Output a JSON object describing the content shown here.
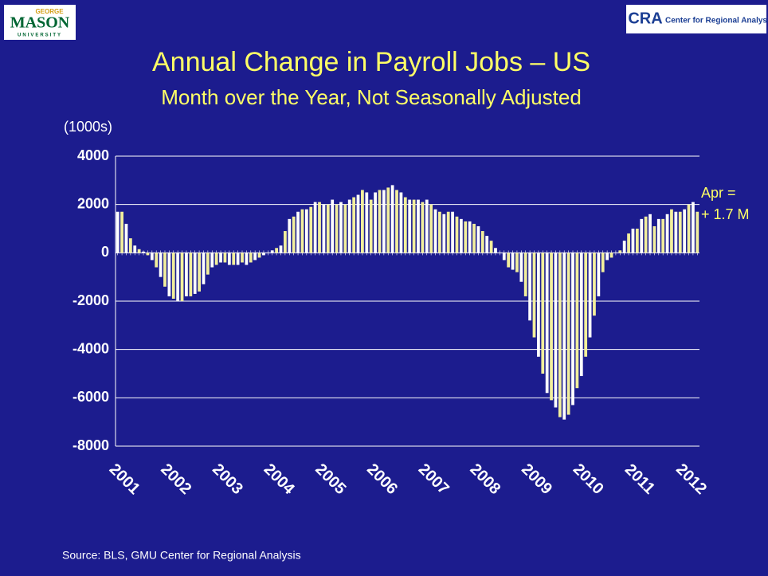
{
  "header": {
    "left_logo": {
      "top": "GEORGE",
      "main": "MASON",
      "bottom": "UNIVERSITY"
    },
    "right_logo": {
      "mark": "CRA",
      "name": "Center for Regional Analysis"
    }
  },
  "chart_data": {
    "type": "bar",
    "title": "Annual Change in Payroll Jobs – US",
    "subtitle": "Month over the Year, Not Seasonally Adjusted",
    "y_label": "(1000s)",
    "annotation": [
      "Apr =",
      "+ 1.7 M"
    ],
    "source": "Source: BLS, GMU Center for Regional Analysis",
    "colors": [
      "#ffffff",
      "#f2ef9c"
    ],
    "grid": true,
    "ylim": [
      -8000,
      4000
    ],
    "yticks": [
      4000,
      2000,
      0,
      -2000,
      -4000,
      -6000,
      -8000
    ],
    "categories": [
      "2001",
      null,
      null,
      null,
      null,
      null,
      null,
      null,
      null,
      null,
      null,
      null,
      "2002",
      null,
      null,
      null,
      null,
      null,
      null,
      null,
      null,
      null,
      null,
      null,
      "2003",
      null,
      null,
      null,
      null,
      null,
      null,
      null,
      null,
      null,
      null,
      null,
      "2004",
      null,
      null,
      null,
      null,
      null,
      null,
      null,
      null,
      null,
      null,
      null,
      "2005",
      null,
      null,
      null,
      null,
      null,
      null,
      null,
      null,
      null,
      null,
      null,
      "2006",
      null,
      null,
      null,
      null,
      null,
      null,
      null,
      null,
      null,
      null,
      null,
      "2007",
      null,
      null,
      null,
      null,
      null,
      null,
      null,
      null,
      null,
      null,
      null,
      "2008",
      null,
      null,
      null,
      null,
      null,
      null,
      null,
      null,
      null,
      null,
      null,
      "2009",
      null,
      null,
      null,
      null,
      null,
      null,
      null,
      null,
      null,
      null,
      null,
      "2010",
      null,
      null,
      null,
      null,
      null,
      null,
      null,
      null,
      null,
      null,
      null,
      "2011",
      null,
      null,
      null,
      null,
      null,
      null,
      null,
      null,
      null,
      null,
      null,
      "2012",
      null,
      null,
      null
    ],
    "values": [
      1700,
      1700,
      1200,
      600,
      300,
      150,
      50,
      -100,
      -300,
      -600,
      -1000,
      -1400,
      -1800,
      -1900,
      -2000,
      -2000,
      -1800,
      -1800,
      -1700,
      -1600,
      -1300,
      -900,
      -600,
      -500,
      -400,
      -400,
      -500,
      -500,
      -500,
      -400,
      -500,
      -400,
      -300,
      -200,
      -100,
      0,
      100,
      200,
      300,
      900,
      1400,
      1500,
      1700,
      1800,
      1800,
      1900,
      2100,
      2100,
      2000,
      2000,
      2200,
      2000,
      2100,
      2000,
      2200,
      2300,
      2400,
      2600,
      2500,
      2200,
      2500,
      2600,
      2600,
      2700,
      2800,
      2600,
      2500,
      2300,
      2200,
      2200,
      2200,
      2100,
      2200,
      2000,
      1800,
      1700,
      1600,
      1700,
      1700,
      1500,
      1400,
      1300,
      1300,
      1200,
      1100,
      900,
      700,
      500,
      200,
      0,
      -300,
      -600,
      -700,
      -800,
      -1200,
      -1800,
      -2800,
      -3500,
      -4300,
      -5000,
      -5800,
      -6100,
      -6400,
      -6800,
      -6900,
      -6700,
      -6300,
      -5600,
      -5100,
      -4300,
      -3500,
      -2600,
      -1800,
      -800,
      -300,
      -200,
      0,
      100,
      500,
      800,
      1000,
      1000,
      1400,
      1500,
      1600,
      1100,
      1400,
      1400,
      1600,
      1800,
      1700,
      1700,
      1800,
      2000,
      2100,
      1700
    ]
  }
}
